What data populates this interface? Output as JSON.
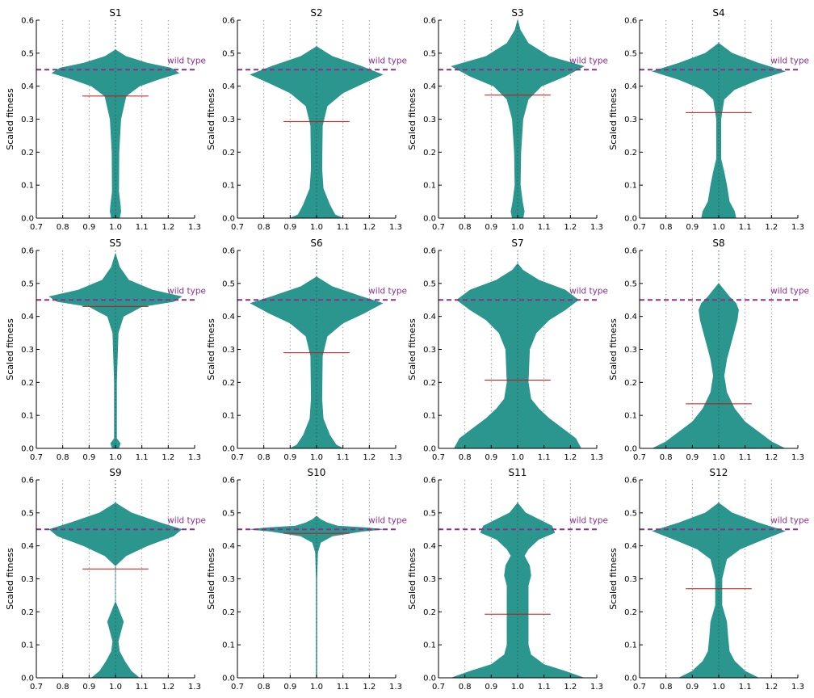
{
  "figure": {
    "background": "#ffffff"
  },
  "chart_data": {
    "type": "violin",
    "xlim": [
      0.7,
      1.3
    ],
    "ylim": [
      0.0,
      0.6
    ],
    "xticks": [
      "0.7",
      "0.8",
      "0.9",
      "1.0",
      "1.1",
      "1.2",
      "1.3"
    ],
    "yticks": [
      "0.0",
      "0.1",
      "0.2",
      "0.3",
      "0.4",
      "0.5",
      "0.6"
    ],
    "ylabel": "Scaled fitness",
    "grid": "x-dotted",
    "violin_position": 1.0,
    "violin_color": "#2a968e",
    "mean_color": "#cc1111",
    "wild_type": {
      "value": 0.45,
      "label": "wild type",
      "color": "#8b2f8b"
    },
    "panels": [
      {
        "title": "S1",
        "mean": 0.37,
        "top": 0.51,
        "profile": [
          [
            0.0,
            0.015
          ],
          [
            0.02,
            0.02
          ],
          [
            0.04,
            0.018
          ],
          [
            0.08,
            0.012
          ],
          [
            0.2,
            0.013
          ],
          [
            0.3,
            0.02
          ],
          [
            0.37,
            0.04
          ],
          [
            0.4,
            0.09
          ],
          [
            0.42,
            0.16
          ],
          [
            0.44,
            0.24
          ],
          [
            0.455,
            0.21
          ],
          [
            0.47,
            0.12
          ],
          [
            0.49,
            0.04
          ],
          [
            0.51,
            0.0
          ]
        ]
      },
      {
        "title": "S2",
        "mean": 0.293,
        "top": 0.52,
        "profile": [
          [
            0.0,
            0.1
          ],
          [
            0.01,
            0.07
          ],
          [
            0.04,
            0.05
          ],
          [
            0.06,
            0.04
          ],
          [
            0.09,
            0.025
          ],
          [
            0.15,
            0.02
          ],
          [
            0.28,
            0.022
          ],
          [
            0.34,
            0.04
          ],
          [
            0.38,
            0.1
          ],
          [
            0.41,
            0.18
          ],
          [
            0.435,
            0.25
          ],
          [
            0.46,
            0.17
          ],
          [
            0.49,
            0.06
          ],
          [
            0.52,
            0.0
          ]
        ]
      },
      {
        "title": "S3",
        "mean": 0.373,
        "top": 0.6,
        "profile": [
          [
            0.0,
            0.02
          ],
          [
            0.02,
            0.025
          ],
          [
            0.05,
            0.018
          ],
          [
            0.1,
            0.01
          ],
          [
            0.2,
            0.012
          ],
          [
            0.3,
            0.02
          ],
          [
            0.36,
            0.04
          ],
          [
            0.4,
            0.09
          ],
          [
            0.43,
            0.18
          ],
          [
            0.46,
            0.25
          ],
          [
            0.49,
            0.12
          ],
          [
            0.53,
            0.04
          ],
          [
            0.57,
            0.01
          ],
          [
            0.6,
            0.0
          ]
        ]
      },
      {
        "title": "S4",
        "mean": 0.32,
        "top": 0.53,
        "profile": [
          [
            0.0,
            0.065
          ],
          [
            0.02,
            0.06
          ],
          [
            0.05,
            0.04
          ],
          [
            0.1,
            0.03
          ],
          [
            0.14,
            0.02
          ],
          [
            0.18,
            0.008
          ],
          [
            0.3,
            0.008
          ],
          [
            0.36,
            0.02
          ],
          [
            0.39,
            0.06
          ],
          [
            0.42,
            0.15
          ],
          [
            0.445,
            0.25
          ],
          [
            0.47,
            0.15
          ],
          [
            0.5,
            0.05
          ],
          [
            0.53,
            0.0
          ]
        ]
      },
      {
        "title": "S5",
        "mean": 0.43,
        "top": 0.59,
        "profile": [
          [
            0.0,
            0.012
          ],
          [
            0.015,
            0.018
          ],
          [
            0.03,
            0.004
          ],
          [
            0.2,
            0.004
          ],
          [
            0.35,
            0.01
          ],
          [
            0.4,
            0.03
          ],
          [
            0.43,
            0.1
          ],
          [
            0.445,
            0.22
          ],
          [
            0.46,
            0.25
          ],
          [
            0.48,
            0.14
          ],
          [
            0.51,
            0.05
          ],
          [
            0.55,
            0.015
          ],
          [
            0.59,
            0.0
          ]
        ]
      },
      {
        "title": "S6",
        "mean": 0.29,
        "top": 0.52,
        "profile": [
          [
            0.0,
            0.1
          ],
          [
            0.01,
            0.075
          ],
          [
            0.04,
            0.05
          ],
          [
            0.06,
            0.04
          ],
          [
            0.09,
            0.025
          ],
          [
            0.15,
            0.02
          ],
          [
            0.28,
            0.022
          ],
          [
            0.34,
            0.04
          ],
          [
            0.38,
            0.1
          ],
          [
            0.41,
            0.18
          ],
          [
            0.44,
            0.25
          ],
          [
            0.46,
            0.17
          ],
          [
            0.49,
            0.06
          ],
          [
            0.52,
            0.0
          ]
        ]
      },
      {
        "title": "S7",
        "mean": 0.207,
        "top": 0.56,
        "profile": [
          [
            0.0,
            0.24
          ],
          [
            0.03,
            0.22
          ],
          [
            0.06,
            0.17
          ],
          [
            0.09,
            0.12
          ],
          [
            0.12,
            0.08
          ],
          [
            0.15,
            0.05
          ],
          [
            0.2,
            0.04
          ],
          [
            0.3,
            0.045
          ],
          [
            0.35,
            0.07
          ],
          [
            0.39,
            0.12
          ],
          [
            0.42,
            0.18
          ],
          [
            0.45,
            0.23
          ],
          [
            0.48,
            0.18
          ],
          [
            0.51,
            0.08
          ],
          [
            0.54,
            0.02
          ],
          [
            0.56,
            0.0
          ]
        ]
      },
      {
        "title": "S8",
        "mean": 0.135,
        "top": 0.5,
        "profile": [
          [
            0.0,
            0.25
          ],
          [
            0.02,
            0.2
          ],
          [
            0.05,
            0.15
          ],
          [
            0.08,
            0.1
          ],
          [
            0.12,
            0.06
          ],
          [
            0.17,
            0.03
          ],
          [
            0.22,
            0.02
          ],
          [
            0.27,
            0.03
          ],
          [
            0.33,
            0.05
          ],
          [
            0.39,
            0.07
          ],
          [
            0.42,
            0.075
          ],
          [
            0.44,
            0.065
          ],
          [
            0.46,
            0.04
          ],
          [
            0.48,
            0.02
          ],
          [
            0.5,
            0.0
          ]
        ]
      },
      {
        "title": "S9",
        "mean": 0.33,
        "top": 0.53,
        "profile": [
          [
            0.0,
            0.09
          ],
          [
            0.02,
            0.06
          ],
          [
            0.05,
            0.035
          ],
          [
            0.08,
            0.015
          ],
          [
            0.11,
            0.01
          ],
          [
            0.14,
            0.02
          ],
          [
            0.17,
            0.03
          ],
          [
            0.2,
            0.015
          ],
          [
            0.23,
            0.0
          ],
          [
            0.34,
            0.0
          ],
          [
            0.37,
            0.04
          ],
          [
            0.4,
            0.12
          ],
          [
            0.43,
            0.22
          ],
          [
            0.45,
            0.25
          ],
          [
            0.47,
            0.17
          ],
          [
            0.5,
            0.06
          ],
          [
            0.53,
            0.0
          ]
        ]
      },
      {
        "title": "S10",
        "mean": 0.438,
        "top": 0.49,
        "profile": [
          [
            0.0,
            0.001
          ],
          [
            0.3,
            0.001
          ],
          [
            0.38,
            0.004
          ],
          [
            0.41,
            0.015
          ],
          [
            0.43,
            0.06
          ],
          [
            0.445,
            0.18
          ],
          [
            0.45,
            0.25
          ],
          [
            0.455,
            0.18
          ],
          [
            0.46,
            0.08
          ],
          [
            0.47,
            0.04
          ],
          [
            0.48,
            0.015
          ],
          [
            0.49,
            0.0
          ]
        ]
      },
      {
        "title": "S11",
        "mean": 0.193,
        "top": 0.53,
        "profile": [
          [
            0.0,
            0.25
          ],
          [
            0.02,
            0.18
          ],
          [
            0.04,
            0.1
          ],
          [
            0.07,
            0.05
          ],
          [
            0.1,
            0.04
          ],
          [
            0.2,
            0.04
          ],
          [
            0.28,
            0.04
          ],
          [
            0.31,
            0.05
          ],
          [
            0.34,
            0.045
          ],
          [
            0.37,
            0.025
          ],
          [
            0.39,
            0.04
          ],
          [
            0.42,
            0.08
          ],
          [
            0.44,
            0.14
          ],
          [
            0.46,
            0.13
          ],
          [
            0.48,
            0.08
          ],
          [
            0.5,
            0.03
          ],
          [
            0.53,
            0.0
          ]
        ]
      },
      {
        "title": "S12",
        "mean": 0.27,
        "top": 0.53,
        "profile": [
          [
            0.0,
            0.15
          ],
          [
            0.02,
            0.1
          ],
          [
            0.05,
            0.06
          ],
          [
            0.08,
            0.04
          ],
          [
            0.12,
            0.035
          ],
          [
            0.17,
            0.03
          ],
          [
            0.22,
            0.012
          ],
          [
            0.3,
            0.012
          ],
          [
            0.36,
            0.03
          ],
          [
            0.39,
            0.08
          ],
          [
            0.42,
            0.17
          ],
          [
            0.445,
            0.25
          ],
          [
            0.47,
            0.15
          ],
          [
            0.5,
            0.05
          ],
          [
            0.53,
            0.0
          ]
        ]
      }
    ]
  }
}
